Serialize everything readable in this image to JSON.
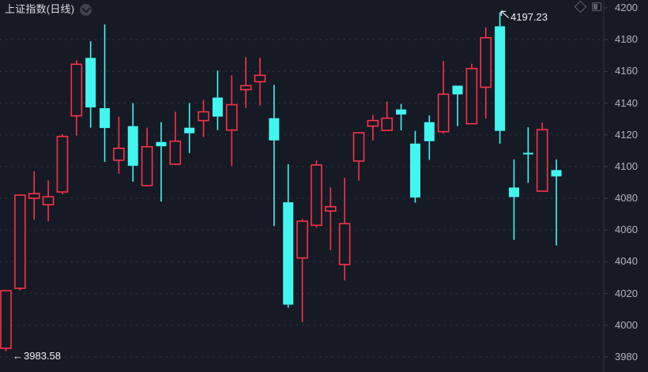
{
  "header": {
    "symbol_title": "上证指数(日线)",
    "collapse_icon": "chevron-down-in-circle",
    "toolbar_icons": [
      "diamond-outline",
      "panel-split"
    ]
  },
  "chart_data": {
    "type": "candlestick",
    "title": "上证指数(日线)",
    "legend_position": "top-left",
    "y_axis": {
      "position": "right",
      "min": 3980,
      "max": 4200,
      "step": 20,
      "ticks": [
        "4200",
        "4180",
        "4160",
        "4140",
        "4120",
        "4100",
        "4080",
        "4060",
        "4040",
        "4020",
        "4000",
        "3980"
      ],
      "grid": "dotted-horizontal"
    },
    "x_axis": {
      "labels": [],
      "note": "no time labels visible"
    },
    "colors": {
      "up_candle": "#fa3248",
      "down_candle": "#42f6f0",
      "background": "#161a25",
      "grid_dots": "#383b44",
      "axis_line": "#2e323d",
      "axis_text": "#b2b5be",
      "annotation_text": "#eef0f4"
    },
    "candle_style": {
      "up": "hollow",
      "down": "filled"
    },
    "ohlc_columns": [
      "open",
      "high",
      "low",
      "close"
    ],
    "candles": [
      [
        3985.5,
        4021.8,
        3983.58,
        4021.8
      ],
      [
        4023.3,
        4082.0,
        4022.0,
        4082.0
      ],
      [
        4080.0,
        4097.0,
        4066.5,
        4083.0
      ],
      [
        4076.0,
        4091.3,
        4065.5,
        4081.0
      ],
      [
        4084.0,
        4120.4,
        4082.5,
        4119.0
      ],
      [
        4132.0,
        4167.0,
        4119.5,
        4164.5
      ],
      [
        4168.5,
        4179.0,
        4124.5,
        4137.3
      ],
      [
        4136.8,
        4189.5,
        4103.0,
        4124.3
      ],
      [
        4104.0,
        4131.5,
        4095.5,
        4111.5
      ],
      [
        4125.5,
        4140.0,
        4090.5,
        4100.5
      ],
      [
        4088.0,
        4124.5,
        4087.5,
        4112.5
      ],
      [
        4115.5,
        4128.0,
        4078.0,
        4112.8
      ],
      [
        4101.5,
        4134.5,
        4101.0,
        4116.0
      ],
      [
        4124.5,
        4140.0,
        4108.5,
        4121.0
      ],
      [
        4129.0,
        4142.0,
        4118.5,
        4134.5
      ],
      [
        4143.5,
        4160.5,
        4123.0,
        4131.5
      ],
      [
        4123.0,
        4157.5,
        4100.5,
        4139.0
      ],
      [
        4148.5,
        4169.0,
        4137.0,
        4151.0
      ],
      [
        4153.5,
        4168.5,
        4138.5,
        4157.5
      ],
      [
        4130.5,
        4151.5,
        4062.5,
        4116.5
      ],
      [
        4077.5,
        4101.5,
        4011.0,
        4013.0
      ],
      [
        4042.4,
        4067.0,
        4002.0,
        4065.6
      ],
      [
        4063.0,
        4103.8,
        4061.5,
        4101.0
      ],
      [
        4072.0,
        4086.8,
        4047.3,
        4074.7
      ],
      [
        4038.3,
        4093.0,
        4028.3,
        4064.0
      ],
      [
        4103.5,
        4121.3,
        4091.3,
        4121.3
      ],
      [
        4125.5,
        4132.5,
        4116.5,
        4129.0
      ],
      [
        4122.8,
        4141.0,
        4122.3,
        4130.5
      ],
      [
        4136.0,
        4139.5,
        4122.8,
        4132.8
      ],
      [
        4114.5,
        4122.5,
        4077.2,
        4080.5
      ],
      [
        4128.0,
        4132.2,
        4104.2,
        4116.0
      ],
      [
        4122.0,
        4166.5,
        4120.7,
        4145.6
      ],
      [
        4151.0,
        4151.0,
        4125.5,
        4145.5
      ],
      [
        4127.0,
        4164.8,
        4127.0,
        4161.8
      ],
      [
        4150.0,
        4187.6,
        4130.3,
        4181.2
      ],
      [
        4188.4,
        4197.23,
        4114.5,
        4122.5
      ],
      [
        4086.8,
        4104.5,
        4053.8,
        4080.8
      ],
      [
        4108.7,
        4124.8,
        4089.8,
        4107.7
      ],
      [
        4084.5,
        4127.8,
        4084.5,
        4123.3
      ],
      [
        4097.8,
        4104.5,
        4050.3,
        4093.8
      ]
    ],
    "annotations": {
      "high": {
        "value": "4197.23",
        "price": 4197.23,
        "candle_index": 35
      },
      "low": {
        "value": "3983.58",
        "price": 3983.58,
        "candle_index": 0,
        "arrow": "←"
      }
    }
  }
}
